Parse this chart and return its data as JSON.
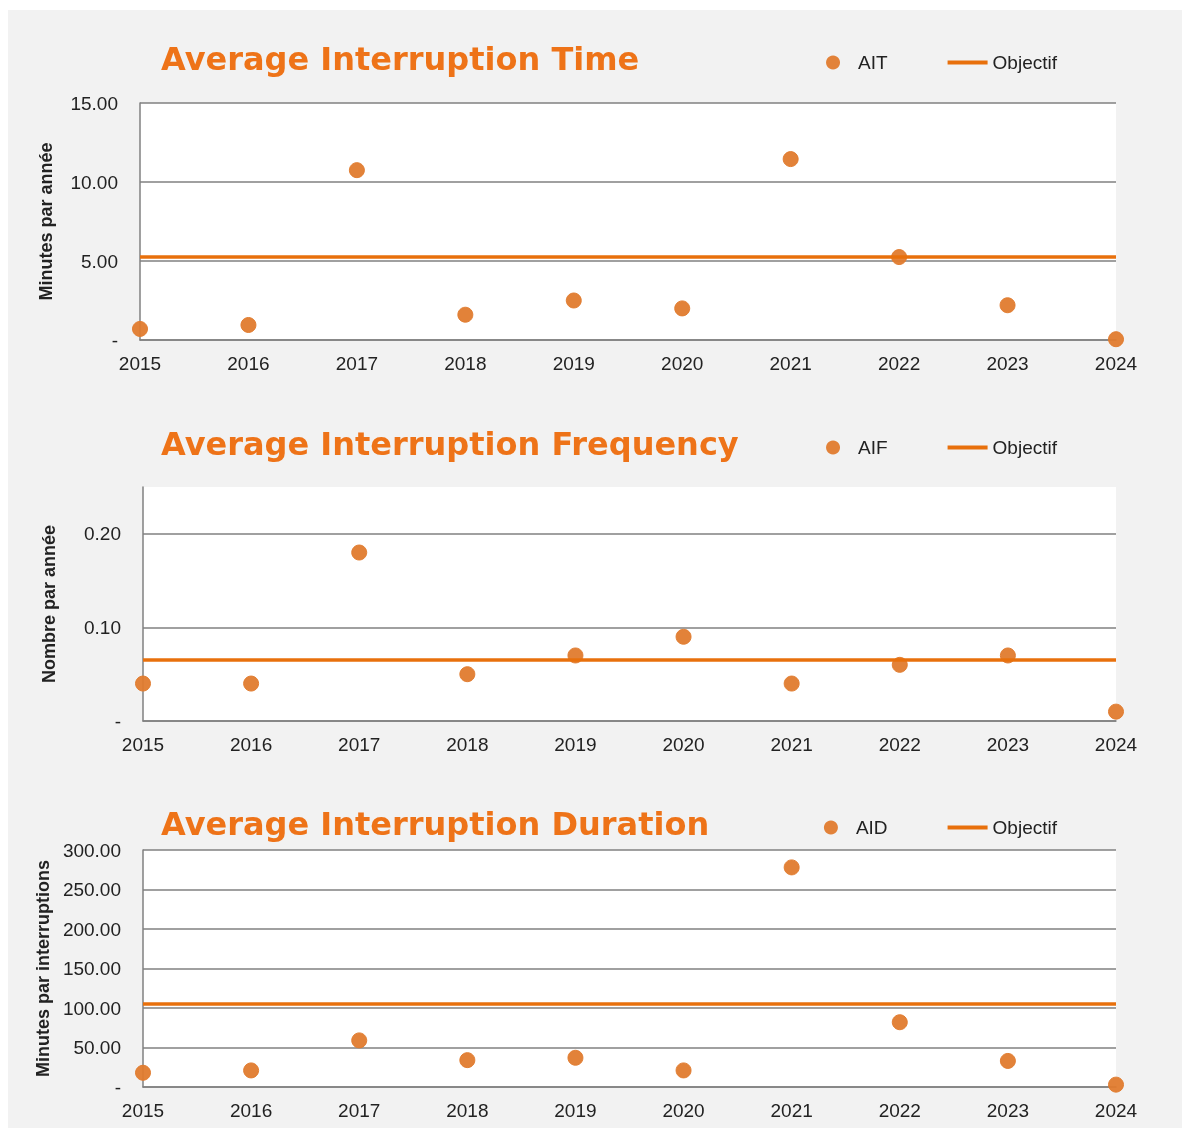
{
  "chart_data": [
    {
      "type": "scatter",
      "title": "Average Interruption Time",
      "ylabel": "Minutes par année",
      "categories": [
        "2015",
        "2016",
        "2017",
        "2018",
        "2019",
        "2020",
        "2021",
        "2022",
        "2023",
        "2024"
      ],
      "series": [
        {
          "name": "AIT",
          "color": "#e07b2e",
          "values": [
            0.7,
            0.95,
            10.75,
            1.6,
            2.5,
            2.0,
            11.45,
            5.25,
            2.2,
            0.05
          ]
        }
      ],
      "ref_lines": [
        {
          "axis": "y",
          "value": 5.25,
          "label": "Objectif",
          "color": "#e8700c",
          "line_style": "solid"
        }
      ],
      "ylim": [
        0,
        15
      ],
      "yticks": [
        {
          "value": 0,
          "label": "-"
        },
        {
          "value": 5,
          "label": "5.00"
        },
        {
          "value": 10,
          "label": "10.00"
        },
        {
          "value": 15,
          "label": "15.00"
        }
      ],
      "grid": "y",
      "legend": "top right",
      "marker": "circle"
    },
    {
      "type": "scatter",
      "title": "Average Interruption Frequency",
      "ylabel": "Nombre par année",
      "categories": [
        "2015",
        "2016",
        "2017",
        "2018",
        "2019",
        "2020",
        "2021",
        "2022",
        "2023",
        "2024"
      ],
      "series": [
        {
          "name": "AIF",
          "color": "#e07b2e",
          "values": [
            0.04,
            0.04,
            0.18,
            0.05,
            0.07,
            0.09,
            0.04,
            0.06,
            0.07,
            0.01
          ]
        }
      ],
      "ref_lines": [
        {
          "axis": "y",
          "value": 0.065,
          "label": "Objectif",
          "color": "#e8700c",
          "line_style": "solid"
        }
      ],
      "ylim": [
        0,
        0.25
      ],
      "yticks": [
        {
          "value": 0,
          "label": "-"
        },
        {
          "value": 0.1,
          "label": "0.10"
        },
        {
          "value": 0.2,
          "label": "0.20"
        }
      ],
      "grid": "y",
      "legend": "top right",
      "marker": "circle"
    },
    {
      "type": "scatter",
      "title": "Average Interruption Duration",
      "ylabel": "Minutes par interruptions",
      "categories": [
        "2015",
        "2016",
        "2017",
        "2018",
        "2019",
        "2020",
        "2021",
        "2022",
        "2023",
        "2024"
      ],
      "series": [
        {
          "name": "AID",
          "color": "#e07b2e",
          "values": [
            18,
            21,
            59,
            34,
            37,
            21,
            278,
            82,
            33,
            3
          ]
        }
      ],
      "ref_lines": [
        {
          "axis": "y",
          "value": 106,
          "label": "Objectif",
          "color": "#e8700c",
          "line_style": "solid"
        }
      ],
      "ylim": [
        0,
        300
      ],
      "yticks": [
        {
          "value": 0,
          "label": "-"
        },
        {
          "value": 50,
          "label": "50.00"
        },
        {
          "value": 100,
          "label": "100.00"
        },
        {
          "value": 150,
          "label": "150.00"
        },
        {
          "value": 200,
          "label": "200.00"
        },
        {
          "value": 250,
          "label": "250.00"
        },
        {
          "value": 300,
          "label": "300.00"
        }
      ],
      "grid": "y",
      "legend": "top right",
      "marker": "circle"
    }
  ]
}
